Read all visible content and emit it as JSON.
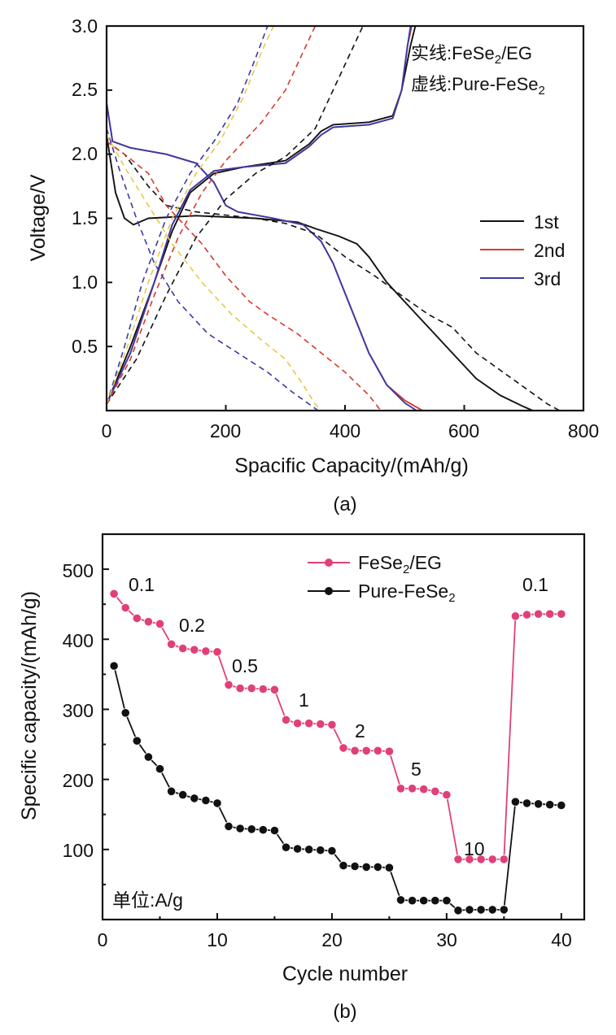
{
  "chart_data": [
    {
      "type": "line",
      "caption": "(a)",
      "xlabel": "Spacific Capacity/(mAh/g)",
      "ylabel": "Voltage/V",
      "xlim": [
        0,
        800
      ],
      "ylim": [
        0,
        3.0
      ],
      "xticks": [
        "0",
        "200",
        "400",
        "600",
        "800"
      ],
      "yticks": [
        "0.5",
        "1.0",
        "1.5",
        "2.0",
        "2.5",
        "3.0"
      ],
      "annotations": {
        "solid_prefix": "实线:",
        "solid_label": "FeSe",
        "solid_sub": "2",
        "solid_suffix": "/EG",
        "dashed_prefix": "虚线:",
        "dashed_label": "Pure-FeSe",
        "dashed_sub": "2"
      },
      "legend": [
        "1st",
        "2nd",
        "3rd"
      ],
      "series_colors": {
        "1st": "#111111",
        "2nd": "#d83a2a",
        "3rd": "#3a3aa8"
      },
      "series": [
        {
          "name": "1st discharge (FeSe2/EG)",
          "color": "#111111",
          "dash": false,
          "points": [
            [
              0,
              2.15
            ],
            [
              15,
              1.7
            ],
            [
              30,
              1.5
            ],
            [
              45,
              1.45
            ],
            [
              70,
              1.5
            ],
            [
              150,
              1.52
            ],
            [
              250,
              1.5
            ],
            [
              320,
              1.47
            ],
            [
              350,
              1.42
            ],
            [
              390,
              1.36
            ],
            [
              420,
              1.3
            ],
            [
              440,
              1.2
            ],
            [
              470,
              1.0
            ],
            [
              490,
              0.9
            ],
            [
              540,
              0.65
            ],
            [
              580,
              0.45
            ],
            [
              620,
              0.25
            ],
            [
              660,
              0.12
            ],
            [
              700,
              0.03
            ],
            [
              715,
              0.0
            ]
          ]
        },
        {
          "name": "1st charge (FeSe2/EG)",
          "color": "#111111",
          "dash": false,
          "points": [
            [
              0,
              0.05
            ],
            [
              40,
              0.5
            ],
            [
              80,
              1.0
            ],
            [
              110,
              1.4
            ],
            [
              140,
              1.7
            ],
            [
              180,
              1.85
            ],
            [
              230,
              1.9
            ],
            [
              300,
              1.95
            ],
            [
              340,
              2.08
            ],
            [
              360,
              2.18
            ],
            [
              380,
              2.23
            ],
            [
              440,
              2.25
            ],
            [
              480,
              2.3
            ],
            [
              495,
              2.5
            ],
            [
              510,
              2.85
            ],
            [
              518,
              3.0
            ]
          ]
        },
        {
          "name": "2nd discharge (FeSe2/EG)",
          "color": "#d83a2a",
          "dash": false,
          "points": [
            [
              0,
              2.4
            ],
            [
              10,
              2.1
            ],
            [
              40,
              2.05
            ],
            [
              100,
              2.0
            ],
            [
              150,
              1.93
            ],
            [
              180,
              1.78
            ],
            [
              200,
              1.6
            ],
            [
              220,
              1.55
            ],
            [
              280,
              1.5
            ],
            [
              330,
              1.45
            ],
            [
              360,
              1.32
            ],
            [
              380,
              1.15
            ],
            [
              410,
              0.8
            ],
            [
              440,
              0.45
            ],
            [
              470,
              0.2
            ],
            [
              500,
              0.08
            ],
            [
              530,
              0.0
            ]
          ]
        },
        {
          "name": "2nd charge (FeSe2/EG)",
          "color": "#d83a2a",
          "dash": false,
          "points": [
            [
              0,
              0.05
            ],
            [
              40,
              0.45
            ],
            [
              80,
              1.0
            ],
            [
              110,
              1.45
            ],
            [
              140,
              1.72
            ],
            [
              180,
              1.87
            ],
            [
              230,
              1.9
            ],
            [
              300,
              1.93
            ],
            [
              340,
              2.06
            ],
            [
              360,
              2.15
            ],
            [
              380,
              2.21
            ],
            [
              440,
              2.23
            ],
            [
              480,
              2.28
            ],
            [
              495,
              2.5
            ],
            [
              505,
              2.85
            ],
            [
              512,
              3.0
            ]
          ]
        },
        {
          "name": "3rd discharge (FeSe2/EG)",
          "color": "#3a3aa8",
          "dash": false,
          "points": [
            [
              0,
              2.4
            ],
            [
              10,
              2.1
            ],
            [
              40,
              2.05
            ],
            [
              100,
              2.0
            ],
            [
              150,
              1.93
            ],
            [
              180,
              1.78
            ],
            [
              200,
              1.6
            ],
            [
              220,
              1.55
            ],
            [
              280,
              1.5
            ],
            [
              330,
              1.45
            ],
            [
              360,
              1.32
            ],
            [
              380,
              1.15
            ],
            [
              410,
              0.8
            ],
            [
              440,
              0.45
            ],
            [
              470,
              0.2
            ],
            [
              500,
              0.06
            ],
            [
              520,
              0.0
            ]
          ]
        },
        {
          "name": "3rd charge (FeSe2/EG)",
          "color": "#3a3aa8",
          "dash": false,
          "points": [
            [
              0,
              0.05
            ],
            [
              40,
              0.45
            ],
            [
              80,
              1.0
            ],
            [
              110,
              1.45
            ],
            [
              140,
              1.72
            ],
            [
              180,
              1.87
            ],
            [
              230,
              1.9
            ],
            [
              300,
              1.93
            ],
            [
              340,
              2.06
            ],
            [
              360,
              2.15
            ],
            [
              380,
              2.21
            ],
            [
              440,
              2.23
            ],
            [
              480,
              2.28
            ],
            [
              495,
              2.5
            ],
            [
              505,
              2.85
            ],
            [
              510,
              3.0
            ]
          ]
        },
        {
          "name": "1st discharge (Pure-FeSe2)",
          "color": "#111111",
          "dash": true,
          "points": [
            [
              0,
              2.1
            ],
            [
              30,
              2.0
            ],
            [
              70,
              1.75
            ],
            [
              100,
              1.6
            ],
            [
              150,
              1.55
            ],
            [
              250,
              1.5
            ],
            [
              300,
              1.46
            ],
            [
              350,
              1.38
            ],
            [
              400,
              1.2
            ],
            [
              450,
              1.05
            ],
            [
              500,
              0.88
            ],
            [
              540,
              0.75
            ],
            [
              580,
              0.65
            ],
            [
              620,
              0.45
            ],
            [
              680,
              0.25
            ],
            [
              740,
              0.05
            ],
            [
              760,
              0.0
            ]
          ]
        },
        {
          "name": "1st charge (Pure-FeSe2)",
          "color": "#111111",
          "dash": true,
          "points": [
            [
              0,
              0.05
            ],
            [
              50,
              0.4
            ],
            [
              100,
              0.9
            ],
            [
              150,
              1.35
            ],
            [
              200,
              1.65
            ],
            [
              250,
              1.85
            ],
            [
              300,
              1.98
            ],
            [
              350,
              2.2
            ],
            [
              390,
              2.6
            ],
            [
              430,
              3.0
            ]
          ]
        },
        {
          "name": "2nd discharge (Pure-FeSe2)",
          "color": "#d83a2a",
          "dash": true,
          "points": [
            [
              0,
              2.1
            ],
            [
              30,
              2.0
            ],
            [
              70,
              1.85
            ],
            [
              100,
              1.6
            ],
            [
              130,
              1.45
            ],
            [
              160,
              1.3
            ],
            [
              200,
              1.05
            ],
            [
              240,
              0.85
            ],
            [
              270,
              0.75
            ],
            [
              320,
              0.6
            ],
            [
              360,
              0.45
            ],
            [
              400,
              0.3
            ],
            [
              440,
              0.12
            ],
            [
              460,
              0.0
            ]
          ]
        },
        {
          "name": "2nd charge (Pure-FeSe2)",
          "color": "#d83a2a",
          "dash": true,
          "points": [
            [
              0,
              0.05
            ],
            [
              40,
              0.4
            ],
            [
              80,
              0.9
            ],
            [
              120,
              1.35
            ],
            [
              160,
              1.7
            ],
            [
              200,
              1.95
            ],
            [
              260,
              2.25
            ],
            [
              300,
              2.5
            ],
            [
              330,
              2.8
            ],
            [
              350,
              3.0
            ]
          ]
        },
        {
          "name": "3rd discharge (Pure-FeSe2)",
          "color": "#3a3aa8",
          "dash": true,
          "points": [
            [
              0,
              2.2
            ],
            [
              20,
              1.9
            ],
            [
              50,
              1.5
            ],
            [
              80,
              1.15
            ],
            [
              120,
              0.85
            ],
            [
              170,
              0.6
            ],
            [
              220,
              0.45
            ],
            [
              270,
              0.3
            ],
            [
              310,
              0.15
            ],
            [
              340,
              0.05
            ],
            [
              355,
              0.0
            ]
          ]
        },
        {
          "name": "3rd charge (Pure-FeSe2)",
          "color": "#3a3aa8",
          "dash": true,
          "points": [
            [
              0,
              0.05
            ],
            [
              30,
              0.5
            ],
            [
              60,
              1.0
            ],
            [
              100,
              1.5
            ],
            [
              140,
              1.85
            ],
            [
              180,
              2.1
            ],
            [
              220,
              2.4
            ],
            [
              250,
              2.75
            ],
            [
              270,
              3.0
            ]
          ]
        },
        {
          "name": "discharge (Pure-FeSe2, light)",
          "color": "#e8c84a",
          "dash": true,
          "points": [
            [
              0,
              2.15
            ],
            [
              30,
              1.9
            ],
            [
              70,
              1.6
            ],
            [
              110,
              1.3
            ],
            [
              160,
              1.0
            ],
            [
              210,
              0.75
            ],
            [
              260,
              0.55
            ],
            [
              300,
              0.4
            ],
            [
              330,
              0.2
            ],
            [
              350,
              0.05
            ],
            [
              360,
              0.0
            ]
          ]
        },
        {
          "name": "charge (Pure-FeSe2, light)",
          "color": "#e8c84a",
          "dash": true,
          "points": [
            [
              0,
              0.05
            ],
            [
              35,
              0.5
            ],
            [
              70,
              1.0
            ],
            [
              110,
              1.5
            ],
            [
              150,
              1.85
            ],
            [
              190,
              2.1
            ],
            [
              230,
              2.45
            ],
            [
              260,
              2.8
            ],
            [
              280,
              3.0
            ]
          ]
        }
      ]
    },
    {
      "type": "line",
      "caption": "(b)",
      "xlabel": "Cycle number",
      "ylabel": "Specific capacity/(mAh/g)",
      "xlim": [
        0,
        42
      ],
      "ylim": [
        0,
        550
      ],
      "xticks": [
        "0",
        "10",
        "20",
        "30",
        "40"
      ],
      "yticks": [
        "100",
        "200",
        "300",
        "400",
        "500"
      ],
      "legend": [
        {
          "label": "FeSe",
          "sub": "2",
          "suffix": "/EG"
        },
        {
          "label": "Pure-FeSe",
          "sub": "2",
          "suffix": ""
        }
      ],
      "unit_label": "单位:A/g",
      "rate_labels": [
        "0.1",
        "0.2",
        "0.5",
        "1",
        "2",
        "5",
        "10",
        "0.1"
      ],
      "cycles": [
        1,
        2,
        3,
        4,
        5,
        6,
        7,
        8,
        9,
        10,
        11,
        12,
        13,
        14,
        15,
        16,
        17,
        18,
        19,
        20,
        21,
        22,
        23,
        24,
        25,
        26,
        27,
        28,
        29,
        30,
        31,
        32,
        33,
        34,
        35,
        36,
        37,
        38,
        39,
        40
      ],
      "series": [
        {
          "name": "FeSe2/EG",
          "color": "#e0407a",
          "values": [
            465,
            445,
            430,
            425,
            422,
            393,
            387,
            385,
            383,
            382,
            335,
            330,
            330,
            329,
            328,
            285,
            280,
            280,
            279,
            278,
            245,
            241,
            241,
            241,
            240,
            187,
            187,
            186,
            183,
            178,
            86,
            86,
            86,
            86,
            86,
            433,
            435,
            436,
            436,
            436
          ]
        },
        {
          "name": "Pure-FeSe2",
          "color": "#111111",
          "values": [
            362,
            295,
            255,
            232,
            215,
            183,
            178,
            173,
            170,
            166,
            133,
            130,
            129,
            128,
            127,
            103,
            101,
            100,
            99,
            98,
            77,
            76,
            75,
            75,
            74,
            28,
            27,
            27,
            27,
            27,
            13,
            14,
            14,
            14,
            14,
            168,
            166,
            165,
            164,
            163
          ]
        }
      ]
    }
  ]
}
